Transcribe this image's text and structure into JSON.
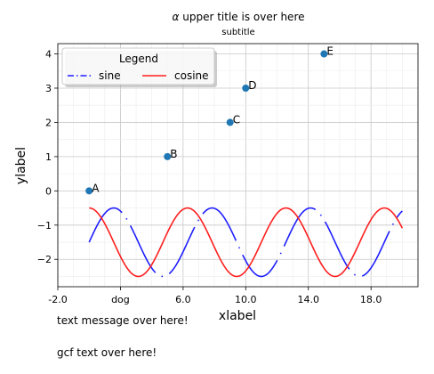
{
  "chart_data": {
    "type": "line",
    "title_prefix": "α",
    "title": "upper title is over here",
    "subtitle": "subtitle",
    "xlabel": "xlabel",
    "ylabel": "ylabel",
    "xlim": [
      -2,
      21
    ],
    "ylim": [
      -2.8,
      4.3
    ],
    "xticks": [
      -2,
      2,
      6,
      10,
      14,
      18
    ],
    "xtick_labels": [
      "-2.0",
      "dog",
      "6.0",
      "10.0",
      "14.0",
      "18.0"
    ],
    "yticks": [
      -2,
      -1,
      0,
      1,
      2,
      3,
      4
    ],
    "ytick_labels": [
      "−2",
      "−1",
      "0",
      "1",
      "2",
      "3",
      "4"
    ],
    "grid": true,
    "legend": {
      "title": "Legend",
      "location": "upper-left",
      "ncol": 2
    },
    "series": [
      {
        "name": "sine",
        "function": "sin(x) - 1.5",
        "x_range": [
          0,
          20
        ],
        "color": "#1f1fff",
        "style": "dash-dot"
      },
      {
        "name": "cosine",
        "function": "cos(x) - 1.5",
        "x_range": [
          0,
          20
        ],
        "color": "#ff1f1f",
        "style": "solid"
      }
    ],
    "points": [
      {
        "label": "A",
        "x": 0,
        "y": 0
      },
      {
        "label": "B",
        "x": 5,
        "y": 1
      },
      {
        "label": "C",
        "x": 9,
        "y": 2
      },
      {
        "label": "D",
        "x": 10,
        "y": 3
      },
      {
        "label": "E",
        "x": 15,
        "y": 4
      }
    ],
    "point_color": "#1f77b4"
  },
  "texts": {
    "message": "text message over here!",
    "gcf": "gcf text over here!"
  }
}
